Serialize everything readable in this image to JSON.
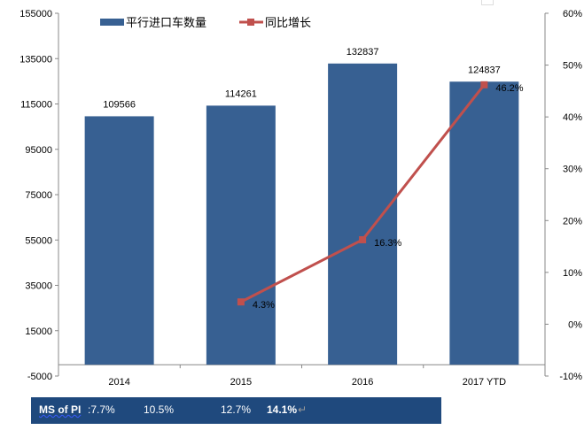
{
  "chart_data": {
    "type": "bar+line",
    "categories": [
      "2014",
      "2015",
      "2016",
      "2017 YTD"
    ],
    "series": [
      {
        "name": "平行进口车数量",
        "type": "bar",
        "axis": "left",
        "values": [
          109566,
          114261,
          132837,
          124837
        ],
        "labels": [
          "109566",
          "114261",
          "132837",
          "124837"
        ],
        "color": "#376092"
      },
      {
        "name": "同比增长",
        "type": "line",
        "axis": "right",
        "values": [
          null,
          4.3,
          16.3,
          46.2
        ],
        "labels": [
          "",
          "4.3%",
          "16.3%",
          "46.2%"
        ],
        "color": "#c0504d"
      }
    ],
    "ylim": [
      -5000,
      155000
    ],
    "yticks": [
      "155000",
      "135000",
      "115000",
      "95000",
      "75000",
      "55000",
      "35000",
      "15000",
      "-5000"
    ],
    "y2lim": [
      -10,
      60
    ],
    "y2ticks": [
      "60%",
      "50%",
      "40%",
      "30%",
      "20%",
      "10%",
      "0%",
      "-10%"
    ],
    "legend": "top",
    "grid": false
  },
  "banner": {
    "label": "MS of PI",
    "values": [
      ":7.7%",
      "10.5%",
      "12.7%",
      "14.1%"
    ],
    "mark": "↵",
    "color": "#1f497d"
  }
}
